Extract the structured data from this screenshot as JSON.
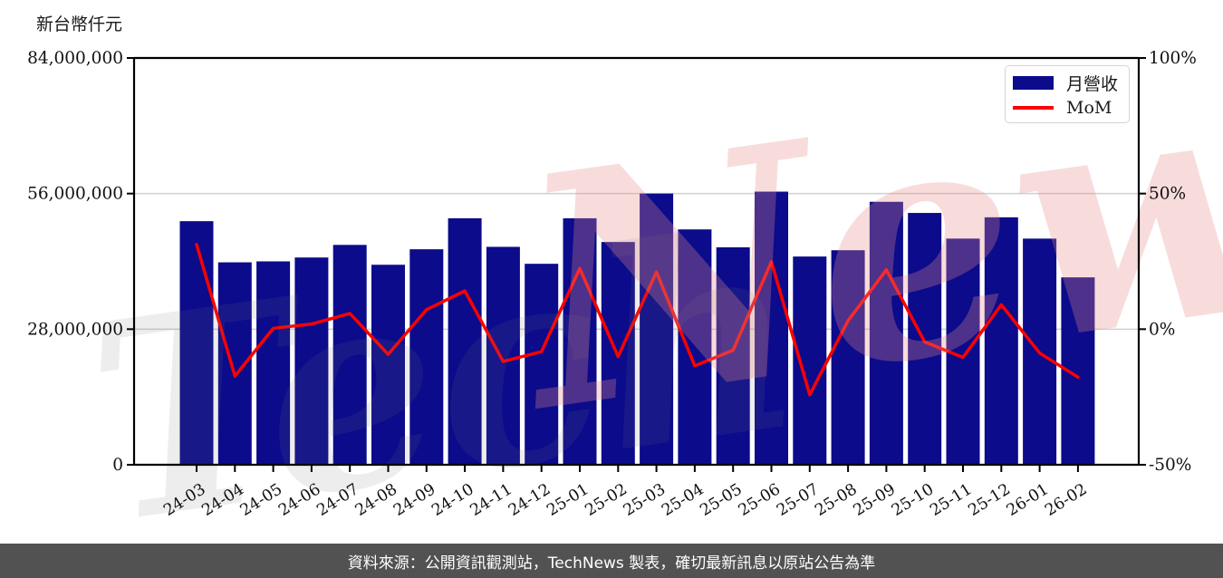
{
  "title": "新台幣仟元",
  "legend": {
    "series1": "月營收",
    "series2": "MoM"
  },
  "footer": {
    "text": "資料來源：公開資訊觀測站，TechNews 製表，確切最新訊息以原站公告為準"
  },
  "watermark": {
    "gray_text": "Tech",
    "pink_text": "News"
  },
  "colors": {
    "bar": "#0b0b8b",
    "line": "#ff0000",
    "grid": "#cfcfcf",
    "axis": "#000000",
    "footer_bg": "#525252",
    "watermark_gray": "rgba(115,115,115,0.13)",
    "watermark_pink": "rgba(233,138,138,0.30)"
  },
  "chart_data": {
    "type": "bar",
    "title": "新台幣仟元",
    "categories": [
      "24-03",
      "24-04",
      "24-05",
      "24-06",
      "24-07",
      "24-08",
      "24-09",
      "24-10",
      "24-11",
      "24-12",
      "25-01",
      "25-02",
      "25-03",
      "25-04",
      "25-05",
      "25-06",
      "25-07",
      "25-08",
      "25-09",
      "25-10",
      "25-11",
      "25-12",
      "26-01",
      "26-02"
    ],
    "series": [
      {
        "name": "月營收",
        "type": "bar",
        "axis": "left",
        "unit": "新台幣仟元",
        "values": [
          50300000,
          41800000,
          42000000,
          42800000,
          45400000,
          41300000,
          44500000,
          50900000,
          45000000,
          41500000,
          50900000,
          46000000,
          56000000,
          48600000,
          44900000,
          56400000,
          43000000,
          44300000,
          54300000,
          52000000,
          46700000,
          51100000,
          46700000,
          38700000
        ]
      },
      {
        "name": "MoM",
        "type": "line",
        "axis": "right",
        "unit": "%",
        "values": [
          31.2,
          -17.3,
          0.3,
          1.9,
          5.8,
          -9.3,
          7.2,
          14.1,
          -11.9,
          -8.3,
          22.4,
          -10.1,
          21.1,
          -13.5,
          -7.8,
          24.9,
          -24.2,
          3.1,
          21.9,
          -4.7,
          -10.4,
          9.0,
          -8.8,
          -17.7
        ]
      }
    ],
    "left_axis": {
      "label": "新台幣仟元",
      "range": [
        0,
        84000000
      ],
      "ticks": [
        {
          "value": 84000000,
          "label": "84,000,000"
        },
        {
          "value": 56000000,
          "label": "56,000,000"
        },
        {
          "value": 28000000,
          "label": "28,000,000"
        },
        {
          "value": 0,
          "label": "0"
        }
      ]
    },
    "right_axis": {
      "range": [
        -50,
        100
      ],
      "ticks": [
        {
          "value": 100,
          "label": "100%"
        },
        {
          "value": 50,
          "label": "50%"
        },
        {
          "value": 0,
          "label": "0%"
        },
        {
          "value": -50,
          "label": "-50%"
        }
      ]
    },
    "grid_right_values": [
      50,
      0
    ],
    "legend_position": "upper right",
    "grid": "horizontal only"
  }
}
